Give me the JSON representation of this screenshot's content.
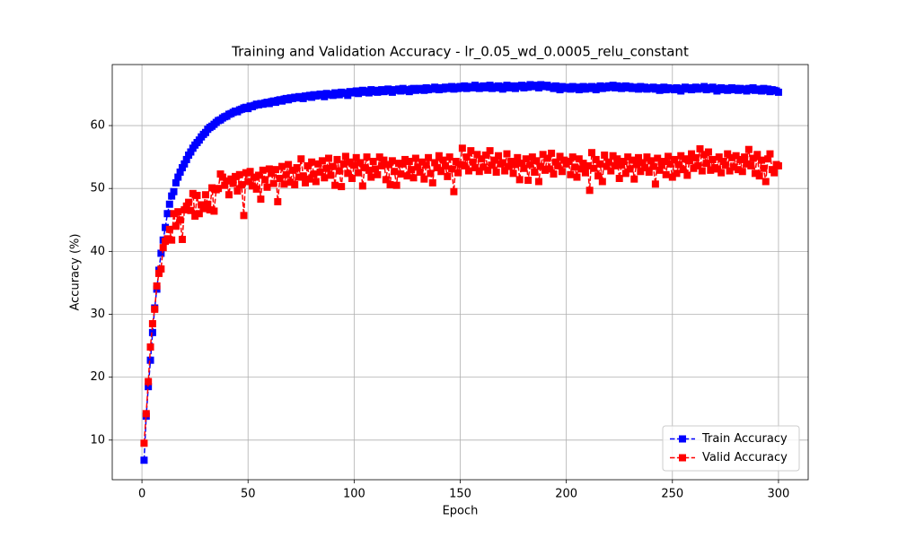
{
  "chart_data": {
    "type": "line",
    "title": "Training and Validation Accuracy - lr_0.05_wd_0.0005_relu_constant",
    "x_label": "Epoch",
    "y_label": "Accuracy (%)",
    "xlim": [
      -14,
      314
    ],
    "xticks": [
      0,
      50,
      100,
      150,
      200,
      250,
      300
    ],
    "ylim": [
      3.7,
      69.7
    ],
    "yticks": [
      10,
      20,
      30,
      40,
      50,
      60
    ],
    "grid": true,
    "legend": "lower right",
    "x": [
      1,
      2,
      3,
      4,
      5,
      6,
      7,
      8,
      9,
      10,
      11,
      12,
      13,
      14,
      15,
      16,
      17,
      18,
      19,
      20,
      21,
      22,
      23,
      24,
      25,
      26,
      27,
      28,
      29,
      30,
      31,
      32,
      33,
      34,
      35,
      36,
      37,
      38,
      39,
      40,
      41,
      42,
      43,
      44,
      45,
      46,
      47,
      48,
      49,
      50,
      51,
      52,
      53,
      54,
      55,
      56,
      57,
      58,
      59,
      60,
      61,
      62,
      63,
      64,
      65,
      66,
      67,
      68,
      69,
      70,
      71,
      72,
      73,
      74,
      75,
      76,
      77,
      78,
      79,
      80,
      81,
      82,
      83,
      84,
      85,
      86,
      87,
      88,
      89,
      90,
      91,
      92,
      93,
      94,
      95,
      96,
      97,
      98,
      99,
      100,
      101,
      102,
      103,
      104,
      105,
      106,
      107,
      108,
      109,
      110,
      111,
      112,
      113,
      114,
      115,
      116,
      117,
      118,
      119,
      120,
      121,
      122,
      123,
      124,
      125,
      126,
      127,
      128,
      129,
      130,
      131,
      132,
      133,
      134,
      135,
      136,
      137,
      138,
      139,
      140,
      141,
      142,
      143,
      144,
      145,
      146,
      147,
      148,
      149,
      150,
      151,
      152,
      153,
      154,
      155,
      156,
      157,
      158,
      159,
      160,
      161,
      162,
      163,
      164,
      165,
      166,
      167,
      168,
      169,
      170,
      171,
      172,
      173,
      174,
      175,
      176,
      177,
      178,
      179,
      180,
      181,
      182,
      183,
      184,
      185,
      186,
      187,
      188,
      189,
      190,
      191,
      192,
      193,
      194,
      195,
      196,
      197,
      198,
      199,
      200,
      201,
      202,
      203,
      204,
      205,
      206,
      207,
      208,
      209,
      210,
      211,
      212,
      213,
      214,
      215,
      216,
      217,
      218,
      219,
      220,
      221,
      222,
      223,
      224,
      225,
      226,
      227,
      228,
      229,
      230,
      231,
      232,
      233,
      234,
      235,
      236,
      237,
      238,
      239,
      240,
      241,
      242,
      243,
      244,
      245,
      246,
      247,
      248,
      249,
      250,
      251,
      252,
      253,
      254,
      255,
      256,
      257,
      258,
      259,
      260,
      261,
      262,
      263,
      264,
      265,
      266,
      267,
      268,
      269,
      270,
      271,
      272,
      273,
      274,
      275,
      276,
      277,
      278,
      279,
      280,
      281,
      282,
      283,
      284,
      285,
      286,
      287,
      288,
      289,
      290,
      291,
      292,
      293,
      294,
      295,
      296,
      297,
      298,
      299,
      300
    ],
    "series": [
      {
        "name": "Train Accuracy",
        "color": "#0000ff",
        "values": [
          6.8,
          13.8,
          18.5,
          22.7,
          27.1,
          31.0,
          34.0,
          37.0,
          39.7,
          41.8,
          43.8,
          46.0,
          47.5,
          48.8,
          49.5,
          50.9,
          51.8,
          52.6,
          53.3,
          53.9,
          54.6,
          55.3,
          55.8,
          56.4,
          56.9,
          57.3,
          57.7,
          58.2,
          58.6,
          58.9,
          59.4,
          59.7,
          59.9,
          60.2,
          60.5,
          60.8,
          60.9,
          61.2,
          61.4,
          61.5,
          61.8,
          61.9,
          62.1,
          62.3,
          62.2,
          62.5,
          62.6,
          62.8,
          62.9,
          62.7,
          63.1,
          63.0,
          63.2,
          63.4,
          63.3,
          63.5,
          63.4,
          63.6,
          63.7,
          63.5,
          63.8,
          63.9,
          63.7,
          64.0,
          64.1,
          63.9,
          64.2,
          64.3,
          64.1,
          64.4,
          64.3,
          64.5,
          64.4,
          64.6,
          64.5,
          64.3,
          64.7,
          64.6,
          64.8,
          64.5,
          64.9,
          64.7,
          64.8,
          65.0,
          64.9,
          64.6,
          65.1,
          64.9,
          65.0,
          64.8,
          65.2,
          65.0,
          64.9,
          65.3,
          65.1,
          65.2,
          64.8,
          65.4,
          65.2,
          65.3,
          65.5,
          65.1,
          65.4,
          65.6,
          65.3,
          65.5,
          65.2,
          65.7,
          65.4,
          65.6,
          65.3,
          65.5,
          65.7,
          65.4,
          65.6,
          65.8,
          65.5,
          65.3,
          65.7,
          65.6,
          65.8,
          65.5,
          65.9,
          65.6,
          65.7,
          65.4,
          65.8,
          65.9,
          65.6,
          65.7,
          65.9,
          65.8,
          65.6,
          66.0,
          65.7,
          65.9,
          65.8,
          66.1,
          65.9,
          65.7,
          66.0,
          65.8,
          66.1,
          65.9,
          66.0,
          66.2,
          65.8,
          66.1,
          65.9,
          66.2,
          66.0,
          66.3,
          65.9,
          66.1,
          66.2,
          66.0,
          66.4,
          66.1,
          65.9,
          66.2,
          66.3,
          66.0,
          66.1,
          66.4,
          65.9,
          66.2,
          66.0,
          66.3,
          66.1,
          65.8,
          66.2,
          66.4,
          66.0,
          66.3,
          66.1,
          65.9,
          66.3,
          66.2,
          66.4,
          66.0,
          66.3,
          66.1,
          66.5,
          66.2,
          66.4,
          66.3,
          66.0,
          66.5,
          66.2,
          66.3,
          66.4,
          66.1,
          66.2,
          65.9,
          66.3,
          66.0,
          65.7,
          66.2,
          65.9,
          66.1,
          66.0,
          65.8,
          66.2,
          65.9,
          66.1,
          65.7,
          66.0,
          66.2,
          65.8,
          66.1,
          65.9,
          66.2,
          66.0,
          65.7,
          66.1,
          66.3,
          65.9,
          66.2,
          66.0,
          66.3,
          66.1,
          66.4,
          66.0,
          66.3,
          66.2,
          65.9,
          66.1,
          66.3,
          66.0,
          66.2,
          65.9,
          66.1,
          66.0,
          65.8,
          66.2,
          65.9,
          66.1,
          65.8,
          66.0,
          65.9,
          66.1,
          65.8,
          66.0,
          65.6,
          65.9,
          66.1,
          65.7,
          66.0,
          65.8,
          65.9,
          65.7,
          66.0,
          65.8,
          65.5,
          65.9,
          66.1,
          65.8,
          66.0,
          65.7,
          65.9,
          66.1,
          65.8,
          66.0,
          65.9,
          66.2,
          65.7,
          66.0,
          65.8,
          66.1,
          65.9,
          65.5,
          65.8,
          66.0,
          65.7,
          65.9,
          65.6,
          65.8,
          66.0,
          65.7,
          65.9,
          65.6,
          65.9,
          65.7,
          65.8,
          65.5,
          65.9,
          65.7,
          66.0,
          65.6,
          65.8,
          65.7,
          65.5,
          65.9,
          65.6,
          65.8,
          65.4,
          65.7,
          65.6,
          65.5,
          65.3
        ]
      },
      {
        "name": "Valid Accuracy",
        "color": "#ff0000",
        "values": [
          9.5,
          14.2,
          19.3,
          24.8,
          28.5,
          30.8,
          34.5,
          36.5,
          37.2,
          40.6,
          41.6,
          42.0,
          43.5,
          41.8,
          46.0,
          44.0,
          46.3,
          45.0,
          41.9,
          46.6,
          47.2,
          47.8,
          46.5,
          49.2,
          45.6,
          48.9,
          46.0,
          47.4,
          46.8,
          49.0,
          47.5,
          46.6,
          50.1,
          46.4,
          49.8,
          50.0,
          52.3,
          51.8,
          50.5,
          51.2,
          49.0,
          51.5,
          50.8,
          51.9,
          49.6,
          52.2,
          50.6,
          45.7,
          52.5,
          51.1,
          52.7,
          50.4,
          51.8,
          49.9,
          52.1,
          48.3,
          52.9,
          51.4,
          50.2,
          53.1,
          52.4,
          50.8,
          53.0,
          47.9,
          51.6,
          53.5,
          50.7,
          52.2,
          53.8,
          51.0,
          52.9,
          50.6,
          53.3,
          51.8,
          54.7,
          52.0,
          50.9,
          53.6,
          51.5,
          54.2,
          52.3,
          51.1,
          53.9,
          52.6,
          54.4,
          51.7,
          53.2,
          54.8,
          52.1,
          53.5,
          50.5,
          54.6,
          52.8,
          50.3,
          53.9,
          55.1,
          52.4,
          54.2,
          51.6,
          53.7,
          54.9,
          52.5,
          54.1,
          50.4,
          53.3,
          55.0,
          52.9,
          51.8,
          54.3,
          53.1,
          52.2,
          55.0,
          53.6,
          54.5,
          51.4,
          53.8,
          50.6,
          54.4,
          52.7,
          50.5,
          54.0,
          52.3,
          53.9,
          54.6,
          52.0,
          54.3,
          53.0,
          51.7,
          54.8,
          53.4,
          52.6,
          54.2,
          51.5,
          53.7,
          54.9,
          52.4,
          50.9,
          54.1,
          53.3,
          55.2,
          52.7,
          54.5,
          53.6,
          51.9,
          55.0,
          53.1,
          49.5,
          54.3,
          52.5,
          53.8,
          56.4,
          53.6,
          55.0,
          52.8,
          56.0,
          54.2,
          53.3,
          55.4,
          52.7,
          54.7,
          53.4,
          55.3,
          52.9,
          56.0,
          53.7,
          54.5,
          52.6,
          55.2,
          53.9,
          54.1,
          52.8,
          55.5,
          53.5,
          54.3,
          52.4,
          53.8,
          54.9,
          51.4,
          54.0,
          53.2,
          54.7,
          51.3,
          53.8,
          55.0,
          52.6,
          54.4,
          51.1,
          53.5,
          55.4,
          52.9,
          54.8,
          53.1,
          55.6,
          52.3,
          54.2,
          53.6,
          55.1,
          52.7,
          54.5,
          53.9,
          54.3,
          52.2,
          55.0,
          53.4,
          51.8,
          54.7,
          53.1,
          54.0,
          52.5,
          53.6,
          49.7,
          55.7,
          53.2,
          54.6,
          52.0,
          53.9,
          51.1,
          55.3,
          53.5,
          54.2,
          52.8,
          55.2,
          53.6,
          54.7,
          51.6,
          53.7,
          54.3,
          52.4,
          55.0,
          53.1,
          54.5,
          51.5,
          53.8,
          54.9,
          52.7,
          54.1,
          53.3,
          55.0,
          52.6,
          54.4,
          53.5,
          50.7,
          54.8,
          52.9,
          53.7,
          54.3,
          52.2,
          55.1,
          53.9,
          51.8,
          54.6,
          52.4,
          53.8,
          55.2,
          53.0,
          54.7,
          52.1,
          54.4,
          55.5,
          53.2,
          54.9,
          53.6,
          56.3,
          52.8,
          55.4,
          54.0,
          55.8,
          52.9,
          54.6,
          53.3,
          53.1,
          55.0,
          52.5,
          54.3,
          53.7,
          55.5,
          52.8,
          54.9,
          53.4,
          55.2,
          53.0,
          54.6,
          52.7,
          55.0,
          53.9,
          56.2,
          53.6,
          54.8,
          52.4,
          55.4,
          52.0,
          54.5,
          53.2,
          51.1,
          54.7,
          55.5,
          53.0,
          52.5,
          53.8,
          53.6
        ]
      }
    ]
  }
}
